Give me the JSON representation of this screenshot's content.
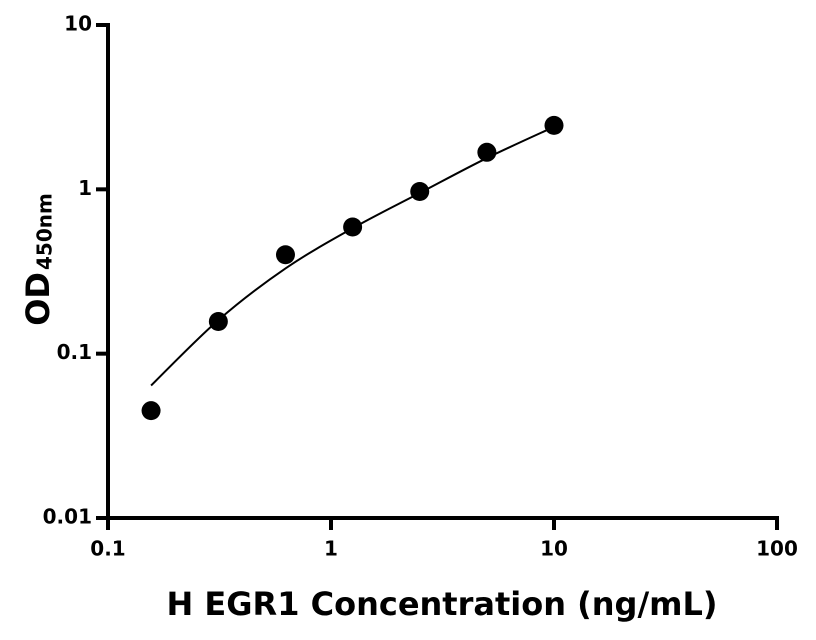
{
  "chart_data": {
    "type": "scatter",
    "xlabel": "H EGR1 Concentration (ng/mL)",
    "ylabel": "OD",
    "ylabel_sub": "450nm",
    "xscale": "log",
    "yscale": "log",
    "xlim": [
      0.1,
      100
    ],
    "xticks": [
      0.1,
      1,
      10,
      100
    ],
    "ylim": [
      0.01,
      10
    ],
    "yticks": [
      0.01,
      0.1,
      1,
      10
    ],
    "color": "#000000",
    "series": [
      {
        "kind": "points",
        "x": [
          0.156,
          0.3125,
          0.625,
          1.25,
          2.5,
          5,
          10
        ],
        "values": [
          0.045,
          0.157,
          0.4,
          0.59,
          0.97,
          1.68,
          2.45
        ]
      },
      {
        "kind": "fit",
        "x": [
          0.156,
          0.3125,
          0.625,
          1.25,
          2.5,
          5,
          10
        ],
        "values": [
          0.064,
          0.16,
          0.33,
          0.58,
          0.95,
          1.55,
          2.4
        ]
      }
    ]
  }
}
